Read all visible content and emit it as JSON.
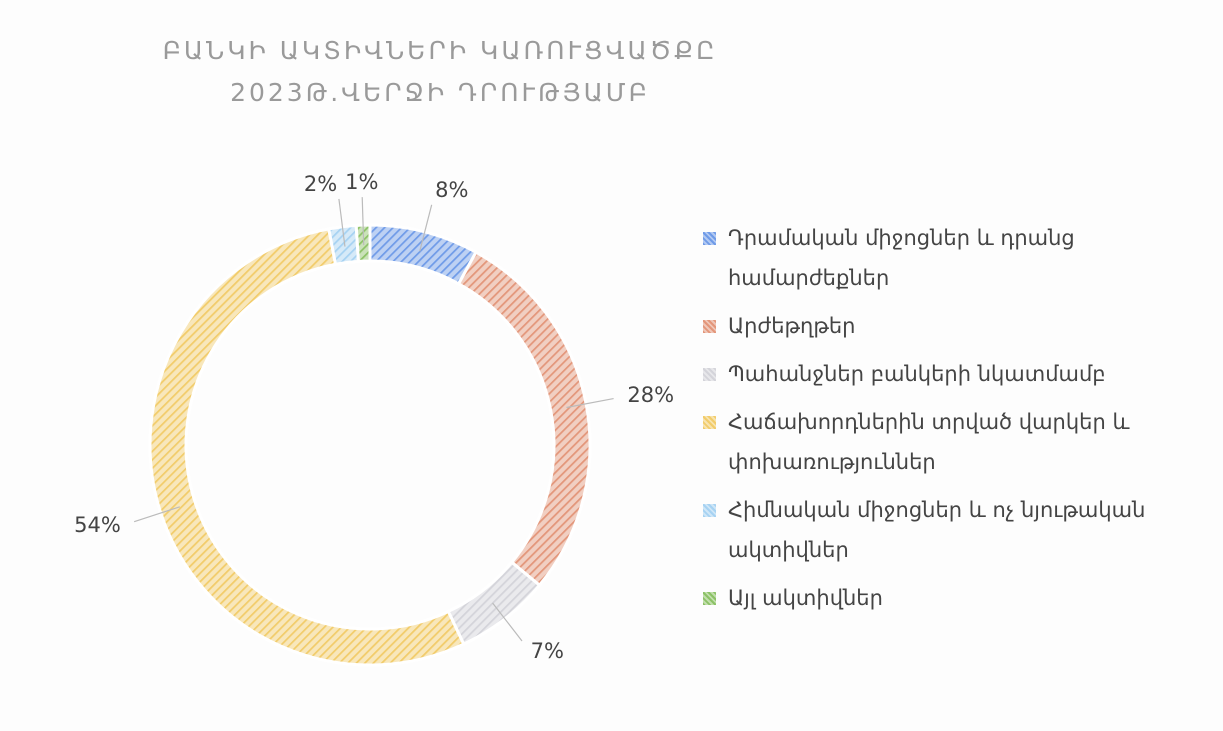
{
  "chart_data": {
    "type": "donut",
    "title": "ԲԱՆԿԻ ԱԿՏԻՎՆԵՐԻ ԿԱՌՈՒՑՎԱԾՔԸ 2023Թ.ՎԵՐՋԻ ԴՐՈՒԹՅԱՄԲ",
    "categories": [
      "Դրամական միջոցներ և դրանց համարժեքներ",
      "Արժեթղթեր",
      "Պահանջներ բանկերի նկատմամբ",
      "Հաճախորդներին տրված վարկեր և փոխառություններ",
      "Հիմնական միջոցներ և ոչ նյութական ակտիվներ",
      "Այլ ակտիվներ"
    ],
    "values": [
      8,
      28,
      7,
      54,
      2,
      1
    ],
    "value_labels": [
      "8%",
      "28%",
      "7%",
      "54%",
      "2%",
      "1%"
    ],
    "colors": [
      "#6f9be8",
      "#e3967a",
      "#d4d4da",
      "#f2cc6a",
      "#a6d2f2",
      "#8cc266"
    ],
    "legend": "right"
  }
}
